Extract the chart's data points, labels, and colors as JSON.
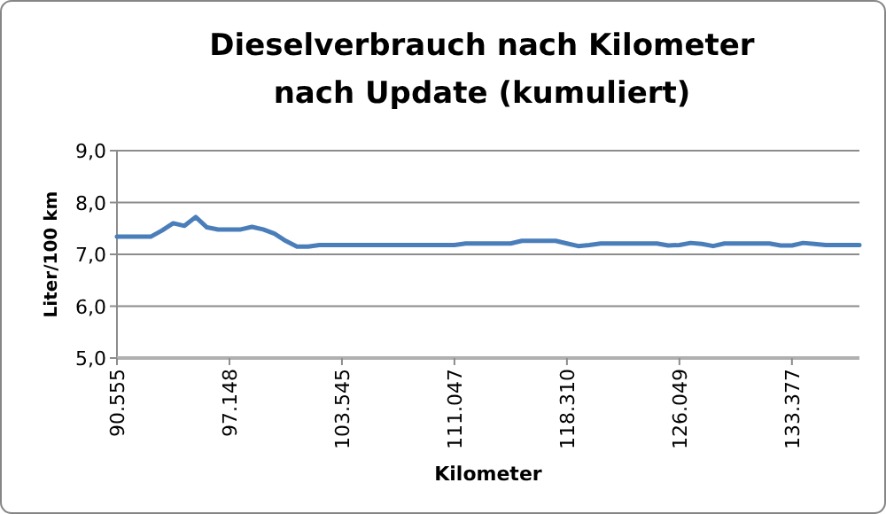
{
  "chart_data": {
    "type": "line",
    "title": "Dieselverbrauch nach Kilometer\nnach Update (kumuliert)",
    "xlabel": "Kilometer",
    "ylabel": "Liter/100 km",
    "categories": [
      "90.555",
      null,
      null,
      null,
      null,
      null,
      null,
      null,
      null,
      null,
      "97.148",
      null,
      null,
      null,
      null,
      null,
      null,
      null,
      null,
      null,
      "103.545",
      null,
      null,
      null,
      null,
      null,
      null,
      null,
      null,
      null,
      "111.047",
      null,
      null,
      null,
      null,
      null,
      null,
      null,
      null,
      null,
      "118.310",
      null,
      null,
      null,
      null,
      null,
      null,
      null,
      null,
      null,
      "126.049",
      null,
      null,
      null,
      null,
      null,
      null,
      null,
      null,
      null,
      "133.377",
      null,
      null,
      null,
      null,
      null,
      null
    ],
    "series": [
      {
        "color": "#4a7ebb",
        "values": [
          7.34,
          7.34,
          7.34,
          7.34,
          7.46,
          7.6,
          7.55,
          7.72,
          7.52,
          7.48,
          7.48,
          7.48,
          7.53,
          7.48,
          7.4,
          7.26,
          7.15,
          7.15,
          7.18,
          7.18,
          7.18,
          7.18,
          7.18,
          7.18,
          7.18,
          7.18,
          7.18,
          7.18,
          7.18,
          7.18,
          7.18,
          7.21,
          7.21,
          7.21,
          7.21,
          7.21,
          7.26,
          7.26,
          7.26,
          7.26,
          7.21,
          7.16,
          7.18,
          7.21,
          7.21,
          7.21,
          7.21,
          7.21,
          7.21,
          7.17,
          7.18,
          7.22,
          7.2,
          7.16,
          7.21,
          7.21,
          7.21,
          7.21,
          7.21,
          7.17,
          7.17,
          7.22,
          7.2,
          7.18,
          7.18,
          7.18,
          7.18
        ]
      }
    ],
    "ylim": [
      5,
      9
    ],
    "yticks": [
      {
        "value": 5,
        "label": "5,0"
      },
      {
        "value": 6,
        "label": "6,0"
      },
      {
        "value": 7,
        "label": "7,0"
      },
      {
        "value": 8,
        "label": "8,0"
      },
      {
        "value": 9,
        "label": "9,0"
      }
    ],
    "grid": "y",
    "marker": "none",
    "line_style": "solid"
  }
}
